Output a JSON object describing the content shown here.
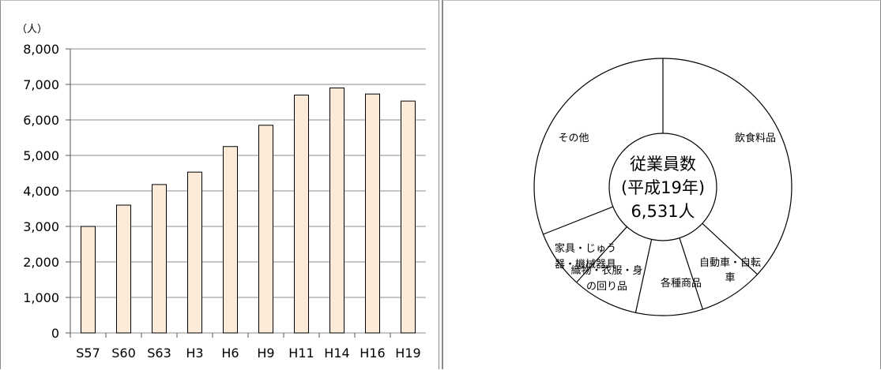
{
  "chart_data": [
    {
      "type": "bar",
      "unit_label": "（人）",
      "categories": [
        "S57",
        "S60",
        "S63",
        "H3",
        "H6",
        "H9",
        "H11",
        "H14",
        "H16",
        "H19"
      ],
      "values": [
        3000,
        3600,
        4180,
        4530,
        5250,
        5850,
        6700,
        6900,
        6730,
        6531
      ],
      "ylim": [
        0,
        8000
      ],
      "yticks": [
        "8,000",
        "7,000",
        "6,000",
        "5,000",
        "4,000",
        "3,000",
        "2,000",
        "1,000",
        "0"
      ],
      "ytick_values": [
        8000,
        7000,
        6000,
        5000,
        4000,
        3000,
        2000,
        1000,
        0
      ],
      "grid": true,
      "bar_color": "#fdebd9",
      "bar_edge_color": "#000000"
    },
    {
      "type": "pie",
      "style": "donut",
      "center_label": [
        "従業員数",
        "(平成19年)",
        "6,531人"
      ],
      "slices": [
        {
          "label": [
            "飲食料品"
          ],
          "fraction": 0.369
        },
        {
          "label": [
            "自動車・自転",
            "車"
          ],
          "fraction": 0.081
        },
        {
          "label": [
            "各種商品"
          ],
          "fraction": 0.084
        },
        {
          "label": [
            "織物・衣服・身",
            "の回り品"
          ],
          "fraction": 0.083
        },
        {
          "label": [
            "家具・じゅう",
            "器・機械器具"
          ],
          "fraction": 0.073
        },
        {
          "label": [
            "その他"
          ],
          "fraction": 0.31
        }
      ],
      "fill_color": "#ffffff",
      "edge_color": "#000000"
    }
  ]
}
